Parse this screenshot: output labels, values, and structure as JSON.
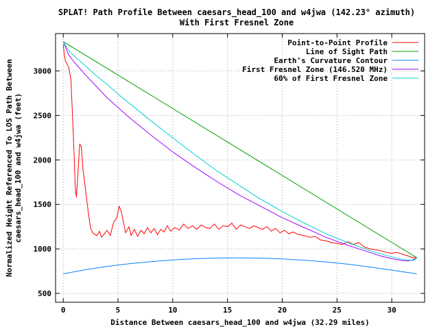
{
  "chart_data": {
    "type": "line",
    "title": "SPLAT! Path Profile Between caesars_head_100 and w4jwa (142.23° azimuth)",
    "subtitle": "With First Fresnel Zone",
    "xlabel": "Distance Between caesars_head_100 and w4jwa (32.29 miles)",
    "ylabel_line1": "Normalized Height Referenced To LOS Path Between",
    "ylabel_line2": "caesars_head_100 and w4jwa (feet)",
    "xlim": [
      -0.7,
      33
    ],
    "ylim": [
      400,
      3420
    ],
    "xticks": [
      0,
      5,
      10,
      15,
      20,
      25,
      30
    ],
    "yticks": [
      500,
      1000,
      1500,
      2000,
      2500,
      3000
    ],
    "grid": true,
    "legend_position": "top-right",
    "series": [
      {
        "name": "Point-to-Point Profile",
        "color": "#ff0000",
        "x": [
          0,
          0.1,
          0.2,
          0.3,
          0.5,
          0.7,
          0.85,
          1.0,
          1.1,
          1.2,
          1.35,
          1.5,
          1.65,
          1.8,
          1.95,
          2.1,
          2.3,
          2.5,
          2.7,
          2.9,
          3.1,
          3.3,
          3.5,
          3.7,
          4.0,
          4.3,
          4.6,
          4.9,
          5.1,
          5.3,
          5.5,
          5.7,
          6.0,
          6.2,
          6.5,
          6.8,
          7.1,
          7.4,
          7.7,
          8.0,
          8.3,
          8.6,
          8.9,
          9.2,
          9.5,
          9.8,
          10.2,
          10.6,
          11.0,
          11.4,
          11.8,
          12.2,
          12.6,
          13.0,
          13.4,
          13.8,
          14.2,
          14.6,
          15.0,
          15.4,
          15.8,
          16.2,
          16.6,
          17.0,
          17.4,
          17.8,
          18.2,
          18.6,
          19.0,
          19.4,
          19.8,
          20.2,
          20.6,
          21.0,
          21.5,
          22.0,
          22.5,
          23.0,
          23.5,
          24.0,
          24.5,
          25.0,
          25.5,
          26.0,
          26.5,
          27.0,
          27.5,
          28.0,
          28.5,
          29.0,
          29.5,
          30.0,
          30.5,
          31.0,
          31.5,
          32.0,
          32.29
        ],
        "values": [
          3300,
          3180,
          3110,
          3090,
          3040,
          2900,
          2500,
          2050,
          1700,
          1580,
          1850,
          2180,
          2150,
          1900,
          1750,
          1600,
          1400,
          1230,
          1180,
          1160,
          1150,
          1200,
          1130,
          1160,
          1210,
          1150,
          1300,
          1350,
          1480,
          1420,
          1300,
          1180,
          1250,
          1150,
          1220,
          1140,
          1210,
          1170,
          1240,
          1180,
          1230,
          1160,
          1220,
          1190,
          1260,
          1200,
          1240,
          1210,
          1280,
          1230,
          1260,
          1220,
          1270,
          1240,
          1230,
          1280,
          1220,
          1260,
          1250,
          1290,
          1220,
          1270,
          1250,
          1230,
          1260,
          1240,
          1220,
          1250,
          1200,
          1230,
          1180,
          1210,
          1170,
          1190,
          1160,
          1150,
          1130,
          1140,
          1100,
          1090,
          1070,
          1060,
          1050,
          1080,
          1050,
          1070,
          1020,
          1000,
          990,
          980,
          960,
          950,
          960,
          940,
          920,
          900,
          905
        ]
      },
      {
        "name": "Line of Sight Path",
        "color": "#00a000",
        "x": [
          0,
          32.29
        ],
        "values": [
          3330,
          900
        ]
      },
      {
        "name": "Earth's Curvature Contour",
        "color": "#0080ff",
        "x": [
          0,
          2,
          4,
          6,
          8,
          10,
          12,
          14,
          16,
          18,
          20,
          22,
          24,
          26,
          28,
          30,
          32.29
        ],
        "values": [
          720,
          765,
          802,
          833,
          857,
          876,
          889,
          897,
          899,
          896,
          887,
          873,
          853,
          828,
          797,
          761,
          720
        ]
      },
      {
        "name": "First Fresnel Zone (146.520 MHz)",
        "color": "#a000ff",
        "x": [
          0,
          0.5,
          1,
          2,
          3,
          4,
          5,
          6,
          8,
          10,
          12,
          14,
          16,
          18,
          20,
          22,
          24,
          26,
          28,
          29,
          30,
          31,
          31.5,
          32,
          32.29
        ],
        "values": [
          3330,
          3180,
          3100,
          2960,
          2830,
          2700,
          2590,
          2480,
          2280,
          2090,
          1920,
          1760,
          1610,
          1480,
          1350,
          1240,
          1130,
          1040,
          960,
          920,
          890,
          868,
          865,
          880,
          900
        ]
      },
      {
        "name": "60% of First Fresnel Zone",
        "color": "#00d0d0",
        "x": [
          0,
          0.5,
          1,
          2,
          3,
          4,
          5,
          6,
          8,
          10,
          12,
          14,
          16,
          18,
          20,
          22,
          24,
          26,
          28,
          30,
          31,
          32,
          32.29
        ],
        "values": [
          3330,
          3230,
          3170,
          3060,
          2950,
          2850,
          2740,
          2640,
          2440,
          2250,
          2060,
          1880,
          1720,
          1560,
          1420,
          1290,
          1170,
          1070,
          980,
          910,
          880,
          870,
          900
        ]
      }
    ]
  }
}
